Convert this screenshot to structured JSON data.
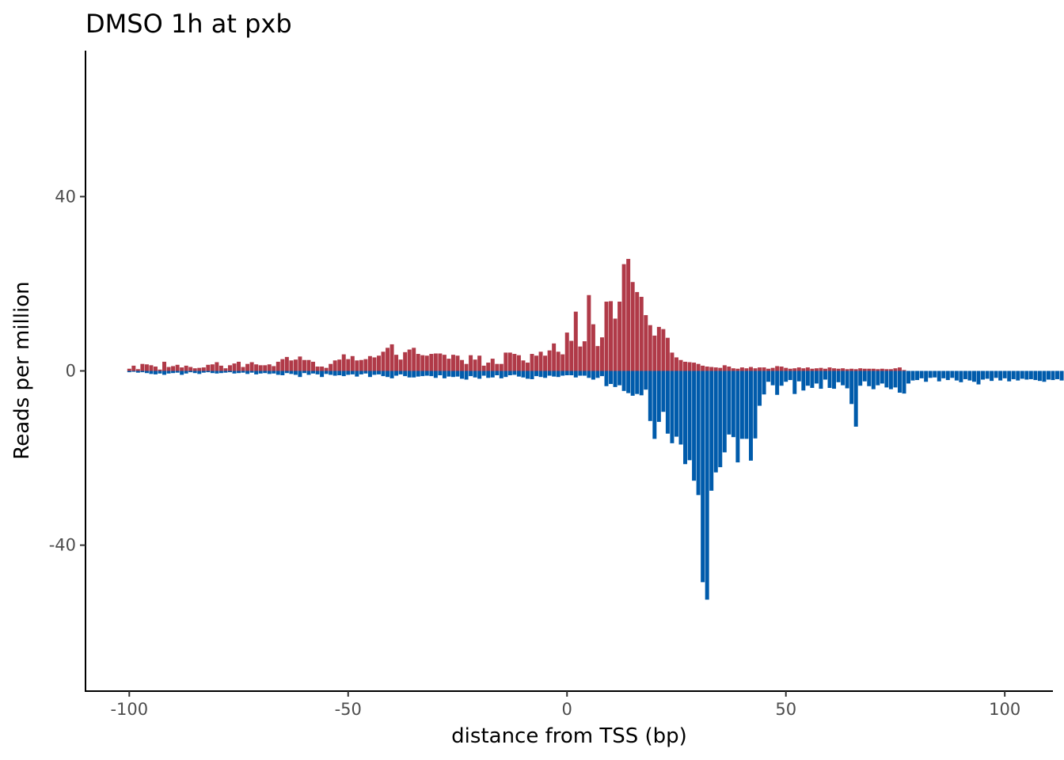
{
  "chart_data": {
    "type": "bar",
    "title": "DMSO 1h at pxb",
    "xlabel": "distance from TSS (bp)",
    "ylabel": "Reads per million",
    "xlim": [
      -110,
      111
    ],
    "ylim": [
      -73.5,
      73.5
    ],
    "x_ticks": [
      -100,
      -50,
      0,
      50,
      100
    ],
    "x_tick_labels": [
      "-100",
      "-50",
      "0",
      "50",
      "100"
    ],
    "y_ticks": [
      -40,
      0,
      40
    ],
    "y_tick_labels": [
      "-40",
      "0",
      "40"
    ],
    "grid": false,
    "legend": "none",
    "x_start": -100,
    "x_step": 1,
    "series": [
      {
        "color": "#b03a48",
        "values": [
          0.5,
          1.2,
          0.4,
          1.6,
          1.5,
          1.3,
          1.0,
          0.3,
          2.1,
          0.9,
          1.1,
          1.4,
          0.8,
          1.2,
          0.9,
          0.6,
          0.7,
          0.8,
          1.4,
          1.5,
          2.0,
          1.2,
          0.6,
          1.3,
          1.7,
          2.1,
          0.9,
          1.6,
          2.0,
          1.5,
          1.3,
          1.3,
          1.5,
          1.1,
          2.1,
          2.7,
          3.2,
          2.4,
          2.6,
          3.3,
          2.5,
          2.5,
          2.1,
          1.0,
          1.0,
          0.7,
          1.6,
          2.4,
          2.6,
          3.8,
          2.7,
          3.4,
          2.4,
          2.5,
          2.7,
          3.4,
          3.1,
          3.5,
          4.4,
          5.3,
          6.1,
          3.7,
          2.6,
          4.3,
          4.9,
          5.3,
          3.9,
          3.6,
          3.5,
          3.9,
          4.0,
          4.0,
          3.7,
          2.8,
          3.7,
          3.5,
          2.5,
          1.6,
          3.6,
          2.6,
          3.5,
          1.2,
          1.9,
          2.8,
          1.6,
          1.6,
          4.2,
          4.2,
          3.9,
          3.6,
          2.4,
          1.9,
          3.9,
          3.5,
          4.4,
          3.5,
          4.7,
          6.3,
          4.4,
          3.8,
          8.8,
          6.9,
          13.6,
          5.6,
          6.8,
          17.4,
          10.7,
          5.7,
          7.7,
          15.9,
          16.0,
          12.0,
          15.9,
          24.5,
          25.7,
          20.4,
          18.1,
          17.0,
          12.8,
          10.5,
          8.1,
          10.1,
          9.6,
          7.6,
          4.2,
          3.1,
          2.5,
          2.1,
          2.0,
          1.9,
          1.6,
          1.2,
          1.0,
          0.9,
          0.8,
          0.7,
          1.3,
          1.0,
          0.6,
          0.5,
          0.8,
          0.6,
          0.9,
          0.6,
          0.8,
          0.8,
          0.5,
          0.7,
          1.1,
          1.0,
          0.7,
          0.5,
          0.6,
          0.8,
          0.6,
          0.8,
          0.5,
          0.6,
          0.7,
          0.5,
          0.8,
          0.6,
          0.5,
          0.6,
          0.4,
          0.5,
          0.4,
          0.6,
          0.5,
          0.5,
          0.5,
          0.4,
          0.5,
          0.4,
          0.4,
          0.6,
          0.8,
          0.2
        ]
      },
      {
        "color": "#005bab",
        "values": [
          0.3,
          0.2,
          0.4,
          0.3,
          0.5,
          0.7,
          0.8,
          0.6,
          0.9,
          0.6,
          0.5,
          0.4,
          0.9,
          0.6,
          0.3,
          0.5,
          0.7,
          0.4,
          0.3,
          0.5,
          0.6,
          0.5,
          0.4,
          0.3,
          0.6,
          0.5,
          0.4,
          0.7,
          0.4,
          0.8,
          0.6,
          0.5,
          0.7,
          0.6,
          0.9,
          1.0,
          0.5,
          0.7,
          0.9,
          1.4,
          0.5,
          0.9,
          0.6,
          0.8,
          1.4,
          0.7,
          0.9,
          1.1,
          1.0,
          1.2,
          0.9,
          0.8,
          1.3,
          0.8,
          0.6,
          1.4,
          0.9,
          0.8,
          1.2,
          1.4,
          1.7,
          1.1,
          0.8,
          1.2,
          1.5,
          1.5,
          1.3,
          1.2,
          1.1,
          1.2,
          1.6,
          1.0,
          1.7,
          1.3,
          1.4,
          1.3,
          1.8,
          2.0,
          1.2,
          1.5,
          1.8,
          1.1,
          1.6,
          1.5,
          1.0,
          1.7,
          1.4,
          1.0,
          0.9,
          1.3,
          1.5,
          1.8,
          1.9,
          1.2,
          1.4,
          1.6,
          1.1,
          1.3,
          1.4,
          1.1,
          1.0,
          1.0,
          1.5,
          1.1,
          1.1,
          1.6,
          2.0,
          1.6,
          1.2,
          3.5,
          3.0,
          3.7,
          3.3,
          4.6,
          5.1,
          5.7,
          5.3,
          5.6,
          4.3,
          11.5,
          15.6,
          11.7,
          9.4,
          14.4,
          16.6,
          15.1,
          16.9,
          21.4,
          20.5,
          25.2,
          28.5,
          48.5,
          52.5,
          27.5,
          23.3,
          22.1,
          18.7,
          14.6,
          15.2,
          21.0,
          15.6,
          15.6,
          20.6,
          15.5,
          8.0,
          5.4,
          2.5,
          3.3,
          5.5,
          3.4,
          2.5,
          2.1,
          5.3,
          2.4,
          4.5,
          3.4,
          3.9,
          2.9,
          4.1,
          2.0,
          3.9,
          4.1,
          2.6,
          3.3,
          4.0,
          7.6,
          12.8,
          3.4,
          2.4,
          3.5,
          4.2,
          3.3,
          2.9,
          3.8,
          4.2,
          3.8,
          5.0,
          5.2,
          2.9,
          2.2,
          2.1,
          1.7,
          2.5,
          1.6,
          1.5,
          2.4,
          1.7,
          2.1,
          1.6,
          2.2,
          2.6,
          1.9,
          2.2,
          2.5,
          3.1,
          2.0,
          1.8,
          2.3,
          1.6,
          2.2,
          1.7,
          2.4,
          1.9,
          2.2,
          1.8,
          2.0,
          1.9,
          2.1,
          2.3,
          2.5,
          2.0,
          2.1,
          1.9,
          2.2,
          2.4,
          2.0,
          1.8,
          2.3
        ]
      }
    ]
  }
}
